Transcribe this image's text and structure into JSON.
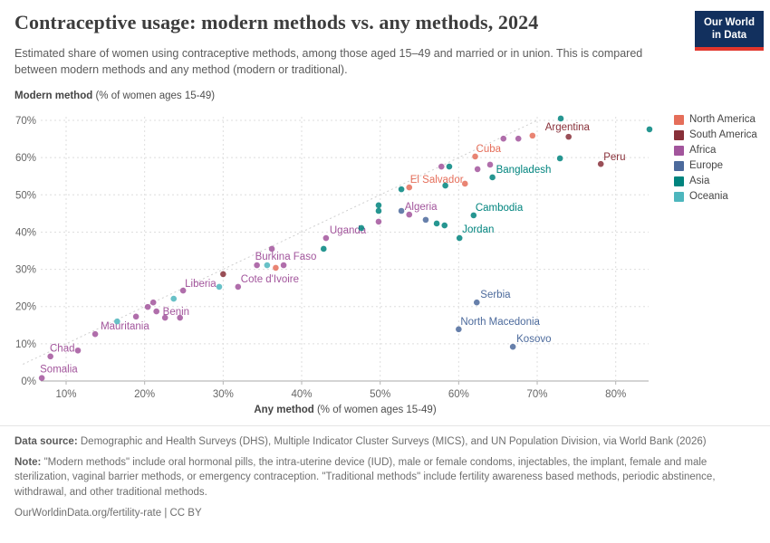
{
  "header": {
    "title": "Contraceptive usage: modern methods vs. any methods, 2024",
    "subtitle": "Estimated share of women using contraceptive methods, among those aged 15–49 and married or in union. This is compared between modern methods and any method (modern or traditional).",
    "logo": {
      "line1": "Our World",
      "line2": "in Data",
      "bg_color": "#12305E",
      "accent_color": "#E2362C"
    }
  },
  "axes": {
    "y_title_bold": "Modern method",
    "y_title_rest": " (% of women ages 15-49)",
    "x_title_bold": "Any method",
    "x_title_rest": " (% of women ages 15-49)",
    "x_ticks": [
      10,
      20,
      30,
      40,
      50,
      60,
      70,
      80
    ],
    "y_ticks": [
      0,
      10,
      20,
      30,
      40,
      50,
      60,
      70
    ],
    "tick_suffix": "%"
  },
  "legend": {
    "items": [
      {
        "label": "North America",
        "color": "#E56E5A"
      },
      {
        "label": "South America",
        "color": "#883039"
      },
      {
        "label": "Africa",
        "color": "#A2559C"
      },
      {
        "label": "Europe",
        "color": "#4C6A9C"
      },
      {
        "label": "Asia",
        "color": "#00847E"
      },
      {
        "label": "Oceania",
        "color": "#4DB6BD"
      }
    ]
  },
  "chart_data": {
    "type": "scatter",
    "title": "Contraceptive usage: modern methods vs. any methods, 2024",
    "xlabel": "Any method (% of women ages 15-49)",
    "ylabel": "Modern method (% of women ages 15-49)",
    "unit": "%",
    "xlim": [
      5,
      85
    ],
    "ylim": [
      0,
      71
    ],
    "grid": "dashed",
    "identity_line": true,
    "legend_position": "right",
    "series": [
      {
        "name": "Africa",
        "color": "#A2559C",
        "label_color": "#A2559C",
        "points": [
          {
            "x": 6.9,
            "y": 0.8,
            "label": "Somalia",
            "dx": -2,
            "dy": -9
          },
          {
            "x": 8.0,
            "y": 6.6
          },
          {
            "x": 11.5,
            "y": 8.2,
            "label": "Chad",
            "dx": -31,
            "dy": -2
          },
          {
            "x": 13.7,
            "y": 12.6,
            "label": "Mauritania",
            "dx": 6,
            "dy": -8
          },
          {
            "x": 18.9,
            "y": 17.3
          },
          {
            "x": 20.4,
            "y": 19.9
          },
          {
            "x": 21.1,
            "y": 21.1
          },
          {
            "x": 21.5,
            "y": 18.7,
            "label": "Benin",
            "dx": 7,
            "dy": 1
          },
          {
            "x": 22.6,
            "y": 17.0
          },
          {
            "x": 24.5,
            "y": 17.0
          },
          {
            "x": 24.9,
            "y": 24.3,
            "label": "Liberia",
            "dx": 2,
            "dy": -7
          },
          {
            "x": 31.9,
            "y": 25.3,
            "label": "Cote d'Ivoire",
            "dx": 3,
            "dy": -8
          },
          {
            "x": 34.3,
            "y": 31.1,
            "label": "Burkina Faso",
            "dx": -2,
            "dy": -9
          },
          {
            "x": 37.7,
            "y": 31.1
          },
          {
            "x": 36.2,
            "y": 35.5
          },
          {
            "x": 43.1,
            "y": 38.4,
            "label": "Uganda",
            "dx": 4,
            "dy": -8
          },
          {
            "x": 49.8,
            "y": 42.8
          },
          {
            "x": 53.7,
            "y": 44.7,
            "label": "Algeria",
            "dx": -5,
            "dy": -8
          },
          {
            "x": 57.8,
            "y": 57.6
          },
          {
            "x": 62.4,
            "y": 56.9
          },
          {
            "x": 64.0,
            "y": 58.1
          },
          {
            "x": 65.7,
            "y": 65.1
          },
          {
            "x": 67.6,
            "y": 65.1
          }
        ]
      },
      {
        "name": "Oceania",
        "color": "#4DB6BD",
        "label_color": "#3A9AA1",
        "points": [
          {
            "x": 16.5,
            "y": 16.0
          },
          {
            "x": 23.7,
            "y": 22.1
          },
          {
            "x": 29.5,
            "y": 25.3
          },
          {
            "x": 35.6,
            "y": 31.1
          }
        ]
      },
      {
        "name": "South America",
        "color": "#883039",
        "label_color": "#883039",
        "points": [
          {
            "x": 30.0,
            "y": 28.7
          },
          {
            "x": 74.0,
            "y": 65.6,
            "label": "Argentina",
            "dx": -26,
            "dy": -10
          },
          {
            "x": 78.1,
            "y": 58.3,
            "label": "Peru",
            "dx": 3,
            "dy": -7
          }
        ]
      },
      {
        "name": "North America",
        "color": "#E56E5A",
        "label_color": "#E56E5A",
        "points": [
          {
            "x": 36.7,
            "y": 30.4
          },
          {
            "x": 53.7,
            "y": 52.0,
            "label": "El Salvador",
            "dx": 1,
            "dy": -8
          },
          {
            "x": 60.8,
            "y": 53.0
          },
          {
            "x": 62.1,
            "y": 60.3,
            "label": "Cuba",
            "dx": 1,
            "dy": -8
          },
          {
            "x": 69.4,
            "y": 65.9
          }
        ]
      },
      {
        "name": "Europe",
        "color": "#4C6A9C",
        "label_color": "#4C6A9C",
        "points": [
          {
            "x": 52.7,
            "y": 45.7
          },
          {
            "x": 55.8,
            "y": 43.3
          },
          {
            "x": 62.3,
            "y": 21.1,
            "label": "Serbia",
            "dx": 4,
            "dy": -8
          },
          {
            "x": 60.0,
            "y": 13.9,
            "label": "North Macedonia",
            "dx": 2,
            "dy": -8
          },
          {
            "x": 66.9,
            "y": 9.2,
            "label": "Kosovo",
            "dx": 4,
            "dy": -8
          }
        ]
      },
      {
        "name": "Asia",
        "color": "#00847E",
        "label_color": "#00847E",
        "points": [
          {
            "x": 42.8,
            "y": 35.5
          },
          {
            "x": 47.6,
            "y": 41.1
          },
          {
            "x": 49.8,
            "y": 47.2
          },
          {
            "x": 49.8,
            "y": 45.7
          },
          {
            "x": 52.7,
            "y": 51.5
          },
          {
            "x": 57.2,
            "y": 42.3
          },
          {
            "x": 58.2,
            "y": 41.8
          },
          {
            "x": 58.3,
            "y": 52.5
          },
          {
            "x": 58.8,
            "y": 57.6
          },
          {
            "x": 60.1,
            "y": 38.4,
            "label": "Jordan",
            "dx": 3,
            "dy": -9
          },
          {
            "x": 61.9,
            "y": 44.5,
            "label": "Cambodia",
            "dx": 2,
            "dy": -8
          },
          {
            "x": 64.3,
            "y": 54.7,
            "label": "Bangladesh",
            "dx": 4,
            "dy": -8
          },
          {
            "x": 72.9,
            "y": 59.8
          },
          {
            "x": 73.0,
            "y": 70.5
          },
          {
            "x": 84.3,
            "y": 67.6
          }
        ]
      }
    ]
  },
  "footer": {
    "source_label": "Data source:",
    "source_text": "Demographic and Health Surveys (DHS), Multiple Indicator Cluster Surveys (MICS), and UN Population Division, via World Bank (2026)",
    "note_label": "Note:",
    "note_text": "\"Modern methods\" include oral hormonal pills, the intra-uterine device (IUD), male or female condoms, injectables, the implant, female and male sterilization, vaginal barrier methods, or emergency contraception. \"Traditional methods\" include fertility awareness based methods, periodic abstinence, withdrawal, and other traditional methods.",
    "citation": "OurWorldinData.org/fertility-rate | CC BY"
  }
}
